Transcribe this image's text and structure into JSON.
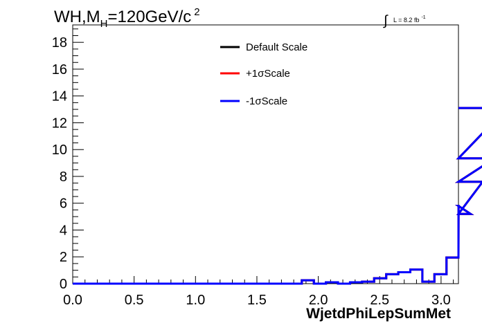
{
  "title": {
    "prefix": "WH,M",
    "subscript": "H",
    "mid": "=120GeV/c",
    "superscript": "2"
  },
  "lumi": {
    "integral_symbol": "∫",
    "text": "L = 8.2 fb",
    "superscript": "-1"
  },
  "colors": {
    "default": "#000000",
    "plus": "#ff0000",
    "minus": "#0000ff"
  },
  "chart_data": {
    "type": "line",
    "style": "step-histogram",
    "xlabel": "WjetdPhiLepSumMet",
    "ylabel": "",
    "xlim": [
      0,
      3.1416
    ],
    "ylim": [
      0,
      19.3
    ],
    "x_ticks": [
      "0.0",
      "0.5",
      "1.0",
      "1.5",
      "2.0",
      "2.5",
      "3.0"
    ],
    "y_ticks": [
      "0",
      "2",
      "4",
      "6",
      "8",
      "10",
      "12",
      "14",
      "16",
      "18"
    ],
    "grid": false,
    "legend_position": "top-center",
    "bin_width": 0.0982,
    "bin_edges_start": 0,
    "series": [
      {
        "name": "Default Scale",
        "color": "#000000",
        "values": [
          0,
          0,
          0,
          0,
          0,
          0,
          0,
          0,
          0,
          0,
          0,
          0,
          0,
          0,
          0,
          0,
          0,
          0,
          0,
          0.25,
          0,
          0.1,
          0,
          0.1,
          0.15,
          0.4,
          0.7,
          0.85,
          1.05,
          0.15,
          0.7,
          1.95,
          5.8,
          5.2,
          7.6,
          9.35,
          13.1
        ]
      },
      {
        "name": "+1σScale",
        "color": "#ff0000",
        "values": [
          0,
          0,
          0,
          0,
          0,
          0,
          0,
          0,
          0,
          0,
          0,
          0,
          0,
          0,
          0,
          0,
          0,
          0,
          0,
          0.25,
          0,
          0.1,
          0,
          0.1,
          0.15,
          0.4,
          0.7,
          0.85,
          1.05,
          0.15,
          0.7,
          1.95,
          5.8,
          5.2,
          7.6,
          9.35,
          13.1
        ]
      },
      {
        "name": "-1σScale",
        "color": "#0000ff",
        "values": [
          0,
          0,
          0,
          0,
          0,
          0,
          0,
          0,
          0,
          0,
          0,
          0,
          0,
          0,
          0,
          0,
          0,
          0,
          0,
          0.25,
          0,
          0.1,
          0,
          0.1,
          0.15,
          0.4,
          0.7,
          0.85,
          1.05,
          0.15,
          0.7,
          1.95,
          5.8,
          5.2,
          7.6,
          9.35,
          13.1
        ]
      }
    ]
  }
}
